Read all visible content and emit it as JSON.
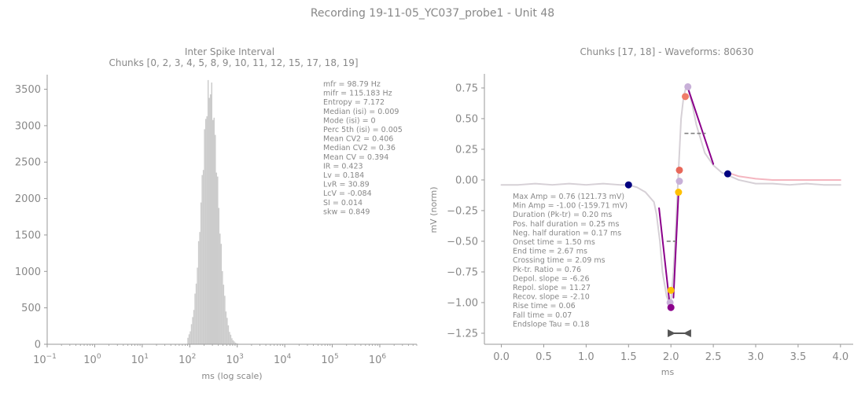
{
  "figure": {
    "suptitle": "Recording 19-11-05_YC037_probe1 - Unit 48"
  },
  "colors": {
    "text": "#888888",
    "axis": "#999999",
    "bars": "#cccccc",
    "waveform": "#d6d0d6",
    "line": "#8b008b",
    "dark_dot": "#000080",
    "salmon_dot": "#f07c68",
    "red_dot": "#e8685a",
    "gold_dot": "#ffc000",
    "lavender_dot": "#c8b0d8",
    "pink_line": "#f4b6c0",
    "dash": "#808080"
  },
  "chart_data": [
    {
      "type": "bar",
      "title_lines": [
        "Inter Spike Interval",
        "Chunks [0, 2, 3, 4, 5, 8, 9, 10, 11, 12, 15, 17, 18, 19]"
      ],
      "xlabel": "ms (log scale)",
      "ylabel": "",
      "xscale": "log",
      "xlim": [
        0.1,
        6000000
      ],
      "ylim": [
        0,
        3700
      ],
      "x_ticks": [
        {
          "value": 0.1,
          "base": "10",
          "exp": "−1"
        },
        {
          "value": 1,
          "base": "10",
          "exp": "0"
        },
        {
          "value": 10,
          "base": "10",
          "exp": "1"
        },
        {
          "value": 100,
          "base": "10",
          "exp": "2"
        },
        {
          "value": 1000,
          "base": "10",
          "exp": "3"
        },
        {
          "value": 10000,
          "base": "10",
          "exp": "4"
        },
        {
          "value": 100000,
          "base": "10",
          "exp": "5"
        },
        {
          "value": 1000000,
          "base": "10",
          "exp": "6"
        }
      ],
      "y_ticks": [
        {
          "value": 0,
          "label": "0"
        },
        {
          "value": 500,
          "label": "500"
        },
        {
          "value": 1000,
          "label": "1000"
        },
        {
          "value": 1500,
          "label": "1500"
        },
        {
          "value": 2000,
          "label": "2000"
        },
        {
          "value": 2500,
          "label": "2500"
        },
        {
          "value": 3000,
          "label": "3000"
        },
        {
          "value": 3500,
          "label": "3500"
        }
      ],
      "histogram": {
        "center_ms": 265,
        "sigma_log10": 0.17,
        "peak": 3500,
        "log_min": 1.95,
        "log_max": 3.25,
        "n_bins": 52
      },
      "stats": [
        "mfr = 98.79 Hz",
        "mifr = 115.183 Hz",
        "Entropy = 7.172",
        "Median (isi) = 0.009",
        "Mode (isi) = 0",
        "Perc 5th (isi) = 0.005",
        "Mean CV2 = 0.406",
        "Median CV2 = 0.36",
        "Mean CV = 0.394",
        "IR = 0.423",
        "Lv = 0.184",
        "LvR = 30.89",
        "LcV = -0.084",
        "SI = 0.014",
        "skw = 0.849"
      ]
    },
    {
      "type": "line",
      "title": "Chunks [17, 18] - Waveforms: 80630",
      "xlabel": "ms",
      "ylabel": "mV (norm)",
      "xlim": [
        -0.2,
        4.15
      ],
      "ylim": [
        -1.34,
        0.865
      ],
      "x_ticks": [
        {
          "value": 0,
          "label": "0.0"
        },
        {
          "value": 0.5,
          "label": "0.5"
        },
        {
          "value": 1,
          "label": "1.0"
        },
        {
          "value": 1.5,
          "label": "1.5"
        },
        {
          "value": 2,
          "label": "2.0"
        },
        {
          "value": 2.5,
          "label": "2.5"
        },
        {
          "value": 3,
          "label": "3.0"
        },
        {
          "value": 3.5,
          "label": "3.5"
        },
        {
          "value": 4,
          "label": "4.0"
        }
      ],
      "y_ticks": [
        {
          "value": 0.75,
          "label": "0.75"
        },
        {
          "value": 0.5,
          "label": "0.50"
        },
        {
          "value": 0.25,
          "label": "0.25"
        },
        {
          "value": 0,
          "label": "0.00"
        },
        {
          "value": -0.25,
          "label": "−0.25"
        },
        {
          "value": -0.5,
          "label": "−0.50"
        },
        {
          "value": -0.75,
          "label": "−0.75"
        },
        {
          "value": -1,
          "label": "−1.00"
        },
        {
          "value": -1.25,
          "label": "−1.25"
        }
      ],
      "series": [
        {
          "role": "waveform",
          "x": [
            0,
            0.2,
            0.4,
            0.6,
            0.8,
            1.0,
            1.2,
            1.4,
            1.5,
            1.6,
            1.7,
            1.8,
            1.83,
            1.87,
            1.9,
            1.95,
            1.98,
            2.0,
            2.03,
            2.06,
            2.09,
            2.12,
            2.15,
            2.18,
            2.2,
            2.25,
            2.3,
            2.4,
            2.5,
            2.6,
            2.7,
            2.8,
            3.0,
            3.2,
            3.4,
            3.6,
            3.8,
            4.0
          ],
          "y": [
            -0.04,
            -0.04,
            -0.03,
            -0.04,
            -0.03,
            -0.04,
            -0.03,
            -0.04,
            -0.04,
            -0.06,
            -0.1,
            -0.18,
            -0.28,
            -0.5,
            -0.75,
            -0.95,
            -1.0,
            -0.98,
            -0.75,
            -0.35,
            0.08,
            0.5,
            0.68,
            0.76,
            0.75,
            0.62,
            0.45,
            0.22,
            0.12,
            0.06,
            0.03,
            0.0,
            -0.03,
            -0.03,
            -0.04,
            -0.03,
            -0.04,
            -0.04
          ]
        },
        {
          "role": "tail-fit",
          "x": [
            2.67,
            2.8,
            3.0,
            3.2,
            3.4,
            3.6,
            3.8,
            4.0
          ],
          "y": [
            0.06,
            0.03,
            0.01,
            0.0,
            0.0,
            0.0,
            0.0,
            0.0
          ]
        },
        {
          "role": "depol-slope",
          "x": [
            1.86,
            1.99
          ],
          "y": [
            -0.23,
            -1.04
          ]
        },
        {
          "role": "repol-slope",
          "x": [
            2.03,
            2.09
          ],
          "y": [
            -0.96,
            -0.1
          ]
        },
        {
          "role": "recov-slope",
          "x": [
            2.2,
            2.5
          ],
          "y": [
            0.75,
            0.13
          ]
        }
      ],
      "dashes": [
        {
          "x": [
            1.95,
            2.06
          ],
          "y": [
            -0.5,
            -0.5
          ]
        },
        {
          "x": [
            2.16,
            2.41
          ],
          "y": [
            0.38,
            0.38
          ]
        }
      ],
      "points": [
        {
          "role": "onset",
          "x": 1.5,
          "y": -0.04,
          "color": "dark_dot"
        },
        {
          "role": "end",
          "x": 2.67,
          "y": 0.05,
          "color": "dark_dot"
        },
        {
          "role": "peak",
          "x": 2.2,
          "y": 0.76,
          "color": "lavender_dot"
        },
        {
          "role": "pos-half",
          "x": 2.17,
          "y": 0.68,
          "color": "salmon_dot"
        },
        {
          "role": "crossing",
          "x": 2.1,
          "y": 0.08,
          "color": "red_dot"
        },
        {
          "role": "lav-mid",
          "x": 2.1,
          "y": -0.01,
          "color": "lavender_dot"
        },
        {
          "role": "gold-mid",
          "x": 2.09,
          "y": -0.1,
          "color": "gold_dot"
        },
        {
          "role": "gold-low",
          "x": 2.0,
          "y": -0.9,
          "color": "gold_dot"
        },
        {
          "role": "trough",
          "x": 1.99,
          "y": -1.0,
          "color": "lavender_dot"
        },
        {
          "role": "min",
          "x": 2.0,
          "y": -1.04,
          "color": "line"
        }
      ],
      "range_marker": {
        "x": [
          1.98,
          2.22
        ],
        "y": -1.25
      },
      "stats": [
        "Max Amp = 0.76 (121.73 mV)",
        "Min Amp = -1.00 (-159.71 mV)",
        "Duration (Pk-tr) = 0.20 ms",
        "Pos. half duration = 0.25 ms",
        "Neg. half duration = 0.17 ms",
        "Onset time = 1.50 ms",
        "End time = 2.67 ms",
        "Crossing time = 2.09 ms",
        "Pk-tr. Ratio = 0.76",
        "Depol. slope = -6.26",
        "Repol. slope = 11.27",
        "Recov. slope = -2.10",
        "Rise time = 0.06",
        "Fall time = 0.07",
        "Endslope Tau = 0.18"
      ]
    }
  ]
}
